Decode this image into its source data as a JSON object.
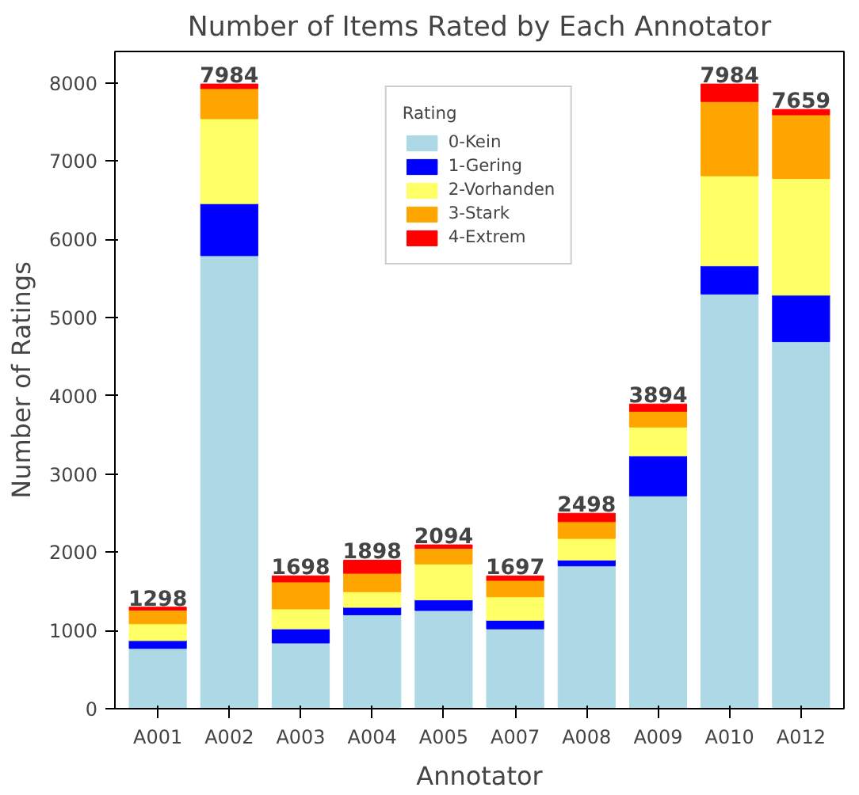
{
  "chart_data": {
    "type": "bar",
    "title": "Number of Items Rated by Each Annotator",
    "xlabel": "Annotator",
    "ylabel": "Number of Ratings",
    "legend_title": "Rating",
    "categories": [
      "A001",
      "A002",
      "A003",
      "A004",
      "A005",
      "A007",
      "A008",
      "A009",
      "A010",
      "A012"
    ],
    "stacked": true,
    "series": [
      {
        "name": "0-Kein",
        "color": "#add8e6",
        "values": [
          770,
          5790,
          840,
          1200,
          1255,
          1020,
          1825,
          2720,
          5300,
          4690
        ]
      },
      {
        "name": "1-Gering",
        "color": "#0000ff",
        "values": [
          100,
          665,
          180,
          95,
          135,
          110,
          75,
          510,
          360,
          595
        ]
      },
      {
        "name": "2-Vorhanden",
        "color": "#ffff66",
        "values": [
          215,
          1085,
          255,
          200,
          460,
          300,
          275,
          370,
          1150,
          1490
        ]
      },
      {
        "name": "3-Stark",
        "color": "#ffa500",
        "values": [
          175,
          385,
          345,
          235,
          200,
          210,
          215,
          200,
          950,
          815
        ]
      },
      {
        "name": "4-Extrem",
        "color": "#ff0000",
        "values": [
          38,
          59,
          78,
          168,
          44,
          57,
          108,
          94,
          224,
          69
        ]
      }
    ],
    "totals": [
      "1298",
      "7984",
      "1698",
      "1898",
      "2094",
      "1697",
      "2498",
      "3894",
      "7984",
      "7659"
    ],
    "ylim": [
      0,
      8400
    ],
    "yticks": [
      0,
      1000,
      2000,
      3000,
      4000,
      5000,
      6000,
      7000,
      8000
    ],
    "grid": false,
    "legend": "top"
  }
}
